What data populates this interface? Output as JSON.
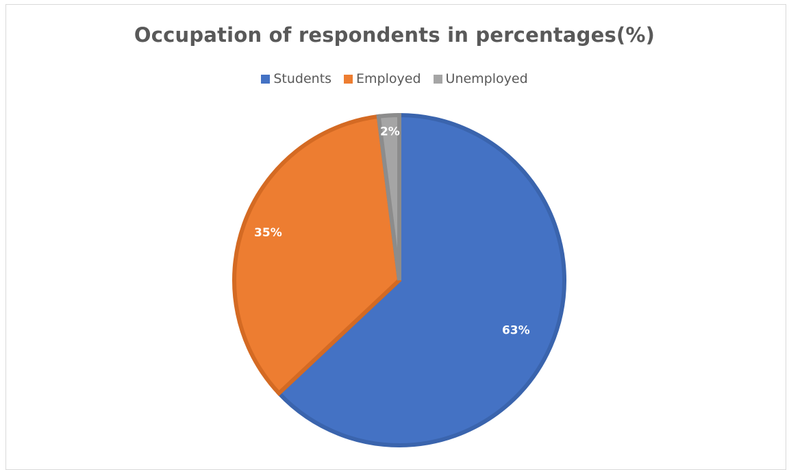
{
  "chart_data": {
    "type": "pie",
    "title": "Occupation of respondents in percentages(%)",
    "legend_position": "top",
    "slices": [
      {
        "label": "Students",
        "value": 63,
        "display": "63%",
        "color": "#4472C4",
        "edge": "#3A64AD"
      },
      {
        "label": "Employed",
        "value": 35,
        "display": "35%",
        "color": "#ED7D31",
        "edge": "#D46A23"
      },
      {
        "label": "Unemployed",
        "value": 2,
        "display": "2%",
        "color": "#A5A5A5",
        "edge": "#8C8C8C"
      }
    ]
  }
}
